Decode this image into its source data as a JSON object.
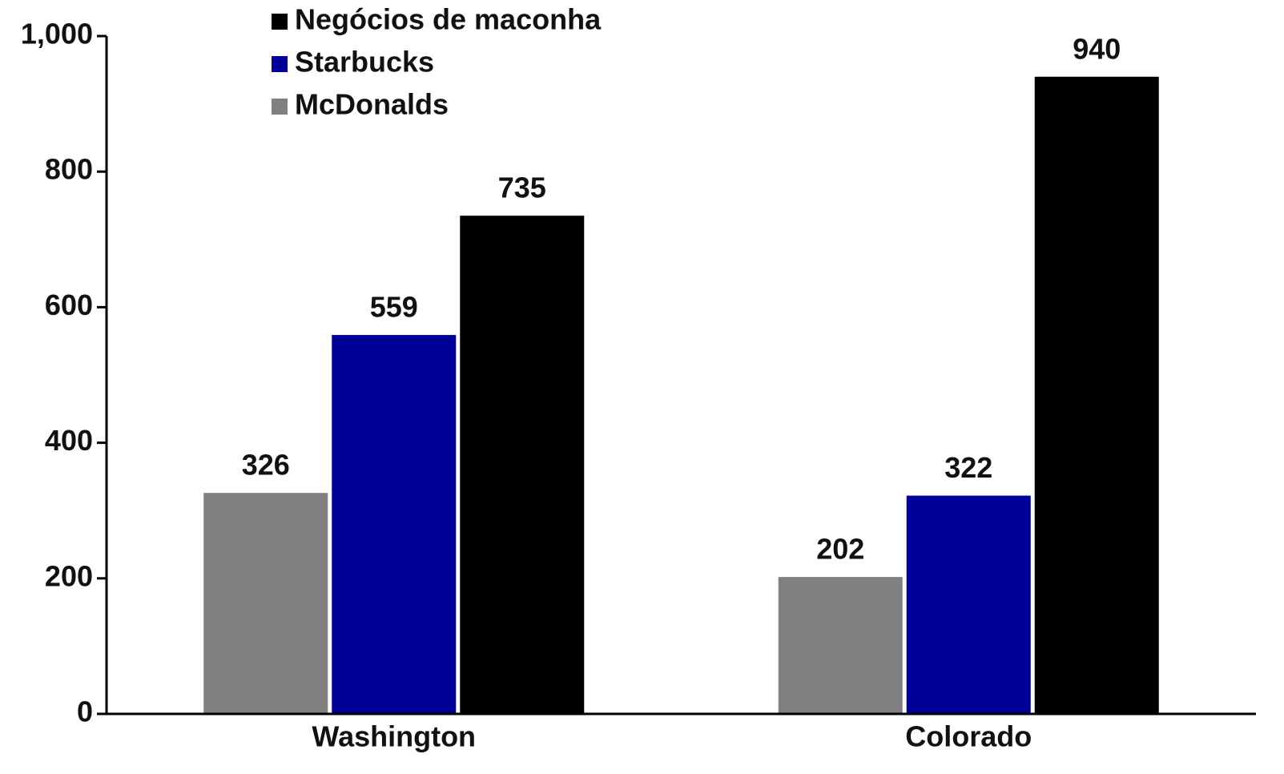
{
  "chart_data": {
    "type": "bar",
    "categories": [
      "Washington",
      "Colorado"
    ],
    "series": [
      {
        "name": "McDonalds",
        "color": "#808080",
        "values": [
          326,
          202
        ]
      },
      {
        "name": "Starbucks",
        "color": "#000099",
        "values": [
          559,
          322
        ]
      },
      {
        "name": "Negócios de maconha",
        "color": "#000000",
        "values": [
          735,
          940
        ]
      }
    ],
    "ylim": [
      0,
      1000
    ],
    "yticks": [
      0,
      200,
      400,
      600,
      800,
      {
        "value": 1000,
        "label": "1,000"
      }
    ],
    "legend": "top-left"
  }
}
